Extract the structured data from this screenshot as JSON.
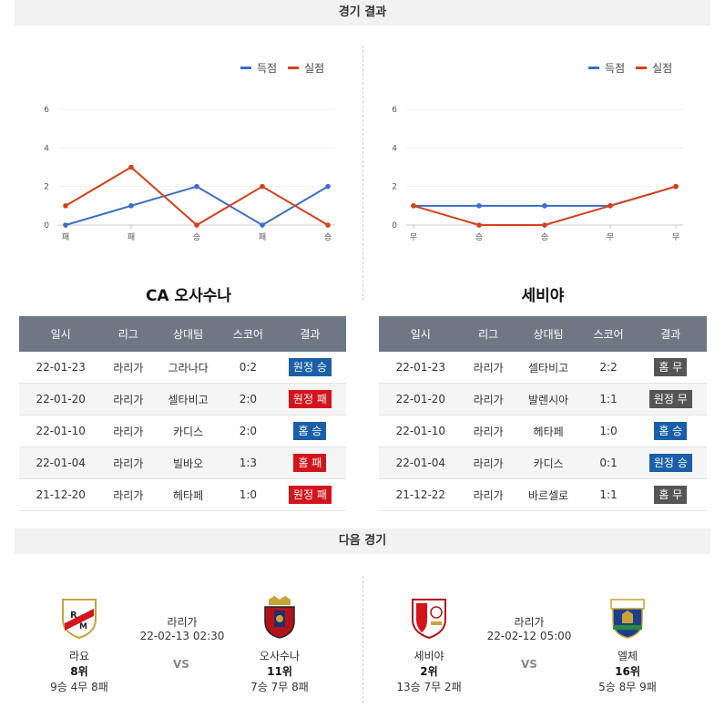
{
  "sections": {
    "results_title": "경기 결과",
    "next_title": "다음 경기"
  },
  "legend": {
    "scored": "득점",
    "conceded": "실점"
  },
  "colors": {
    "scored": "#3a6fc4",
    "conceded": "#d6401a",
    "win": "#1a5fa8",
    "loss": "#d4141c",
    "draw": "#555555"
  },
  "chart_data": [
    {
      "type": "line",
      "categories": [
        "패",
        "패",
        "승",
        "패",
        "승"
      ],
      "series": [
        {
          "name": "득점",
          "values": [
            0,
            1,
            2,
            0,
            2
          ]
        },
        {
          "name": "실점",
          "values": [
            1,
            3,
            0,
            2,
            0
          ]
        }
      ],
      "yticks": [
        "0",
        "2",
        "4",
        "6"
      ],
      "ylim": [
        0,
        6
      ],
      "legend_position": "top-right"
    },
    {
      "type": "line",
      "categories": [
        "무",
        "승",
        "승",
        "무",
        "무"
      ],
      "series": [
        {
          "name": "득점",
          "values": [
            1,
            1,
            1,
            1,
            2
          ]
        },
        {
          "name": "실점",
          "values": [
            1,
            0,
            0,
            1,
            2
          ]
        }
      ],
      "yticks": [
        "0",
        "2",
        "4",
        "6"
      ],
      "ylim": [
        0,
        6
      ],
      "legend_position": "top-right"
    }
  ],
  "teams": {
    "left": {
      "name": "CA 오사수나",
      "headers": [
        "일시",
        "리그",
        "상대팀",
        "스코어",
        "결과"
      ],
      "rows": [
        {
          "date": "22-01-23",
          "league": "라리가",
          "opponent": "그라나다",
          "score": "0:2",
          "result": "원정 승",
          "kind": "win"
        },
        {
          "date": "22-01-20",
          "league": "라리가",
          "opponent": "셀타비고",
          "score": "2:0",
          "result": "원정 패",
          "kind": "loss"
        },
        {
          "date": "22-01-10",
          "league": "라리가",
          "opponent": "카디스",
          "score": "2:0",
          "result": "홈 승",
          "kind": "win"
        },
        {
          "date": "22-01-04",
          "league": "라리가",
          "opponent": "빌바오",
          "score": "1:3",
          "result": "홈 패",
          "kind": "loss"
        },
        {
          "date": "21-12-20",
          "league": "라리가",
          "opponent": "헤타페",
          "score": "1:0",
          "result": "원정 패",
          "kind": "loss"
        }
      ]
    },
    "right": {
      "name": "세비야",
      "headers": [
        "일시",
        "리그",
        "상대팀",
        "스코어",
        "결과"
      ],
      "rows": [
        {
          "date": "22-01-23",
          "league": "라리가",
          "opponent": "셀타비고",
          "score": "2:2",
          "result": "홈 무",
          "kind": "draw"
        },
        {
          "date": "22-01-20",
          "league": "라리가",
          "opponent": "발렌시아",
          "score": "1:1",
          "result": "원정 무",
          "kind": "draw"
        },
        {
          "date": "22-01-10",
          "league": "라리가",
          "opponent": "헤타페",
          "score": "1:0",
          "result": "홈 승",
          "kind": "win"
        },
        {
          "date": "22-01-04",
          "league": "라리가",
          "opponent": "카디스",
          "score": "0:1",
          "result": "원정 승",
          "kind": "win"
        },
        {
          "date": "21-12-22",
          "league": "라리가",
          "opponent": "바르셀로",
          "score": "1:1",
          "result": "홈 무",
          "kind": "draw"
        }
      ]
    }
  },
  "next_matches": [
    {
      "league": "라리가",
      "datetime": "22-02-13 02:30",
      "vs": "VS",
      "home": {
        "name": "라요",
        "rank": "8위",
        "record": "9승 4무 8패",
        "logo_icon": "rayo-crest-icon"
      },
      "away": {
        "name": "오사수나",
        "rank": "11위",
        "record": "7승 7무 8패",
        "logo_icon": "osasuna-crest-icon"
      }
    },
    {
      "league": "라리가",
      "datetime": "22-02-12 05:00",
      "vs": "VS",
      "home": {
        "name": "세비야",
        "rank": "2위",
        "record": "13승 7무 2패",
        "logo_icon": "sevilla-crest-icon"
      },
      "away": {
        "name": "엘체",
        "rank": "16위",
        "record": "5승 8무 9패",
        "logo_icon": "elche-crest-icon"
      }
    }
  ]
}
